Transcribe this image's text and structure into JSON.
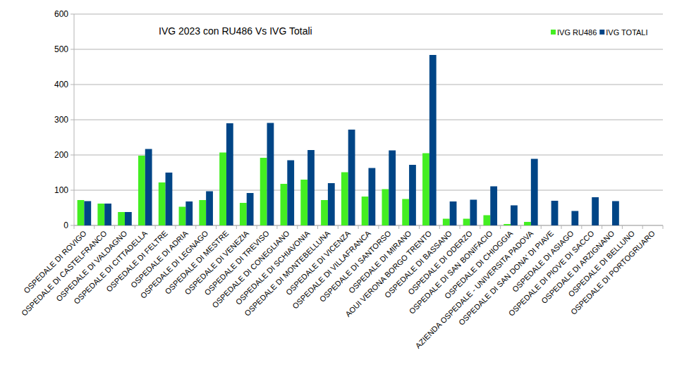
{
  "chart_data": {
    "type": "bar",
    "title": "IVG 2023 con RU486 Vs IVG Totali",
    "categories": [
      "OSPEDALE DI ROVIGO",
      "OSPEDALE DI CASTELFRANCO",
      "OSPEDALE DI VALDAGNO",
      "OSPEDALE DI CITTADELLA",
      "OSPEDALE DI FELTRE",
      "OSPEDALE DI ADRIA",
      "OSPEDALE DI LEGNAGO",
      "OSPEDALE DI MESTRE",
      "OSPEDALE DI VENEZIA",
      "OSPEDALE DI TREVISO",
      "OSPEDALE DI CONEGLIANO",
      "OSPEDALE DI SCHIAVONIA",
      "OSPEDALE DI MONTEBELLUNA",
      "OSPEDALE DI VICENZA",
      "OSPEDALE DI VILLAFRANCA",
      "OSPEDALE DI SANTORSO",
      "OSPEDALE DI MIRANO",
      "AOUI VERONA BORGO TRENTO",
      "OSPEDALE DI BASSANO",
      "OSPEDALE DI ODERZO",
      "OSPEDALE DI SAN BONIFACIO",
      "OSPEDALE DI CHIOGGIA",
      "AZIENDA OSPEDALE - UNIVERSITA PADOVA",
      "OSPEDALE DI SAN DONA' DI PIAVE",
      "OSPEDALE DI ASIAGO",
      "OSPEDALE DI PIOVE DI SACCO",
      "OSPEDALE DI ARZIGNANO",
      "OSPEDALE DI BELLUNO",
      "OSPEDALE DI PORTOGRUARO"
    ],
    "series": [
      {
        "name": "IVG RU486",
        "color": "#44ee22",
        "values": [
          72,
          62,
          38,
          198,
          122,
          53,
          72,
          207,
          64,
          192,
          118,
          130,
          72,
          151,
          82,
          103,
          75,
          205,
          19,
          19,
          29,
          4,
          10,
          0,
          0,
          0,
          0,
          0,
          0
        ]
      },
      {
        "name": "IVG TOTALI",
        "color": "#004586",
        "values": [
          69,
          62,
          38,
          217,
          150,
          68,
          97,
          290,
          92,
          291,
          185,
          214,
          120,
          272,
          163,
          213,
          172,
          484,
          68,
          73,
          111,
          57,
          189,
          70,
          41,
          80,
          69,
          0,
          0
        ]
      }
    ],
    "ylim": [
      0,
      600
    ],
    "yticks": [
      0,
      100,
      200,
      300,
      400,
      500,
      600
    ],
    "grid": true,
    "legend": "top-right"
  }
}
